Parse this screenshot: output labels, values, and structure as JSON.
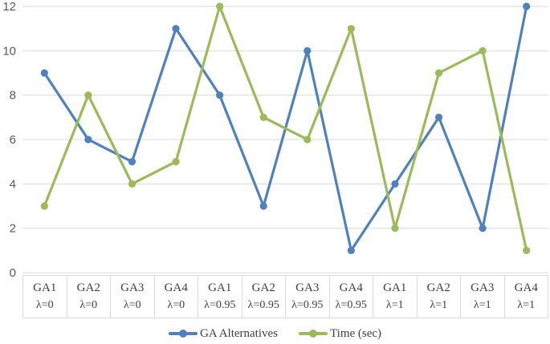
{
  "chart_data": {
    "type": "line",
    "title": "",
    "xlabel": "",
    "ylabel": "",
    "categories": [
      {
        "ga": "GA1",
        "lambda": "λ=0"
      },
      {
        "ga": "GA2",
        "lambda": "λ=0"
      },
      {
        "ga": "GA3",
        "lambda": "λ=0"
      },
      {
        "ga": "GA4",
        "lambda": "λ=0"
      },
      {
        "ga": "GA1",
        "lambda": "λ=0.95"
      },
      {
        "ga": "GA2",
        "lambda": "λ=0.95"
      },
      {
        "ga": "GA3",
        "lambda": "λ=0.95"
      },
      {
        "ga": "GA4",
        "lambda": "λ=0.95"
      },
      {
        "ga": "GA1",
        "lambda": "λ=1"
      },
      {
        "ga": "GA2",
        "lambda": "λ=1"
      },
      {
        "ga": "GA3",
        "lambda": "λ=1"
      },
      {
        "ga": "GA4",
        "lambda": "λ=1"
      }
    ],
    "series": [
      {
        "name": "GA Alternatives",
        "color": "#4F81BD",
        "values": [
          9,
          6,
          5,
          11,
          8,
          3,
          10,
          1,
          4,
          7,
          2,
          12
        ]
      },
      {
        "name": "Time (sec)",
        "color": "#9BBB59",
        "values": [
          3,
          8,
          4,
          5,
          12,
          7,
          6,
          11,
          2,
          9,
          10,
          1
        ]
      }
    ],
    "y_ticks": [
      0,
      2,
      4,
      6,
      8,
      10,
      12
    ],
    "ylim": [
      0,
      12
    ],
    "grid": true,
    "legend_position": "bottom"
  },
  "colors": {
    "gridline": "#D9D9D9",
    "table_border": "#D9D9D9",
    "axis_text": "#595959",
    "label_text": "#3F3F3F",
    "background": "#FFFFFF"
  }
}
